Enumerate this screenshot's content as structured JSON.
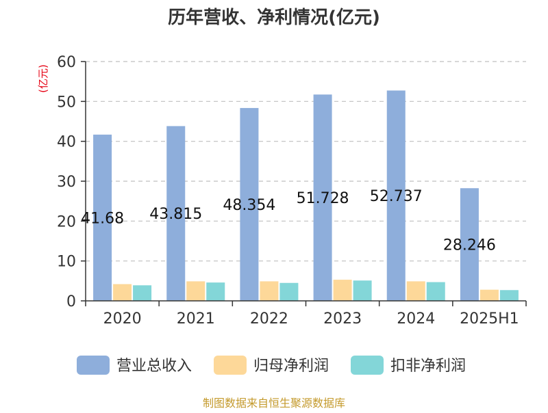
{
  "chart_data": {
    "type": "bar",
    "title": "历年营收、净利情况(亿元)",
    "ylabel": "(亿元)",
    "xlabel": "",
    "categories": [
      "2020",
      "2021",
      "2022",
      "2023",
      "2024",
      "2025H1"
    ],
    "ylim": [
      0,
      60
    ],
    "yticks": [
      "0",
      "10",
      "20",
      "30",
      "40",
      "50",
      "60"
    ],
    "grid": true,
    "legend_position": "bottom",
    "series": [
      {
        "name": "营业总收入",
        "values": [
          41.68,
          43.815,
          48.354,
          51.728,
          52.737,
          28.246
        ],
        "labels": [
          "41.68",
          "43.815",
          "48.354",
          "51.728",
          "52.737",
          "28.246"
        ],
        "color": "#8eaedb"
      },
      {
        "name": "归母净利润",
        "values": [
          4.2,
          4.9,
          4.9,
          5.3,
          4.9,
          2.8
        ],
        "color": "#fdd899"
      },
      {
        "name": "扣非净利润",
        "values": [
          3.9,
          4.6,
          4.5,
          5.1,
          4.7,
          2.7
        ],
        "color": "#83d6d8"
      }
    ]
  },
  "footer": {
    "source": "制图数据来自恒生聚源数据库"
  }
}
